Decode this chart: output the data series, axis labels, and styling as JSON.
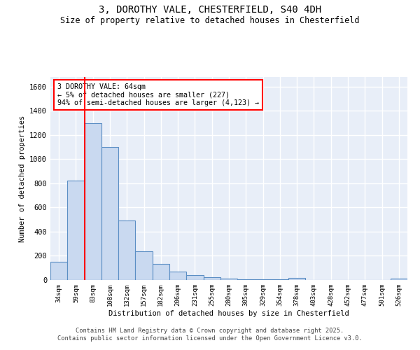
{
  "title_line1": "3, DOROTHY VALE, CHESTERFIELD, S40 4DH",
  "title_line2": "Size of property relative to detached houses in Chesterfield",
  "xlabel": "Distribution of detached houses by size in Chesterfield",
  "ylabel": "Number of detached properties",
  "bar_color": "#c9d9f0",
  "bar_edge_color": "#5b8ec4",
  "background_color": "#e8eef8",
  "grid_color": "white",
  "categories": [
    "34sqm",
    "59sqm",
    "83sqm",
    "108sqm",
    "132sqm",
    "157sqm",
    "182sqm",
    "206sqm",
    "231sqm",
    "255sqm",
    "280sqm",
    "305sqm",
    "329sqm",
    "354sqm",
    "378sqm",
    "403sqm",
    "428sqm",
    "452sqm",
    "477sqm",
    "501sqm",
    "526sqm"
  ],
  "values": [
    150,
    825,
    1300,
    1100,
    490,
    235,
    135,
    70,
    40,
    25,
    10,
    5,
    5,
    5,
    15,
    2,
    2,
    2,
    2,
    2,
    10
  ],
  "ylim": [
    0,
    1680
  ],
  "yticks": [
    0,
    200,
    400,
    600,
    800,
    1000,
    1200,
    1400,
    1600
  ],
  "annotation_text": "3 DOROTHY VALE: 64sqm\n← 5% of detached houses are smaller (227)\n94% of semi-detached houses are larger (4,123) →",
  "vline_x_index": 1,
  "box_color": "red",
  "footer_line1": "Contains HM Land Registry data © Crown copyright and database right 2025.",
  "footer_line2": "Contains public sector information licensed under the Open Government Licence v3.0."
}
